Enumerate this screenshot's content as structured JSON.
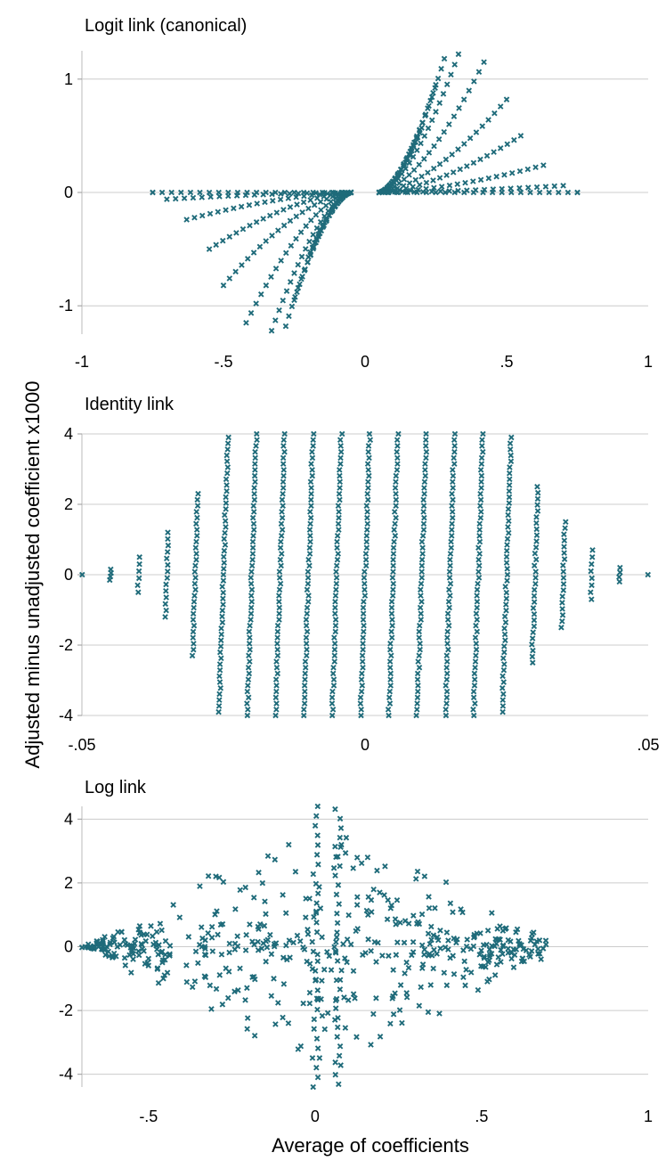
{
  "chart_data": {
    "type": "scatter",
    "xlabel": "Average of coefficients",
    "ylabel": "Adjusted minus unadjusted coefficient x1000",
    "marker_color": "#1f6b7a",
    "marker": "x",
    "grid": "horizontal",
    "panels": [
      {
        "id": "logit",
        "title": "Logit link (canonical)",
        "xlim": [
          -1,
          1
        ],
        "ylim": [
          -1.25,
          1.25
        ],
        "xticks": [
          -1,
          -0.5,
          0,
          0.5,
          1
        ],
        "xtick_labels": [
          "-1",
          "-.5",
          "0",
          ".5",
          "1"
        ],
        "yticks": [
          -1,
          0,
          1
        ],
        "ytick_labels": [
          "-1",
          "0",
          "1"
        ],
        "rays": [
          {
            "r0": 0.05,
            "r1": 0.2,
            "y1": 0.57
          },
          {
            "r0": 0.05,
            "r1": 0.25,
            "y1": 0.95
          },
          {
            "r0": 0.05,
            "r1": 0.28,
            "y1": 1.18
          },
          {
            "r0": 0.05,
            "r1": 0.33,
            "y1": 1.22
          },
          {
            "r0": 0.05,
            "r1": 0.42,
            "y1": 1.15
          },
          {
            "r0": 0.05,
            "r1": 0.5,
            "y1": 0.82
          },
          {
            "r0": 0.05,
            "r1": 0.55,
            "y1": 0.5
          },
          {
            "r0": 0.05,
            "r1": 0.63,
            "y1": 0.24
          },
          {
            "r0": 0.05,
            "r1": 0.7,
            "y1": 0.06
          },
          {
            "r0": 0.05,
            "r1": 0.75,
            "y1": 0.0
          }
        ],
        "points": [
          [
            0.05,
            0.0
          ],
          [
            0.07,
            0.0
          ],
          [
            -0.05,
            0.0
          ],
          [
            -0.07,
            0.0
          ],
          [
            0.75,
            0.0
          ],
          [
            -0.75,
            0.0
          ]
        ]
      },
      {
        "id": "identity",
        "title": "Identity link",
        "xlim": [
          -0.05,
          0.05
        ],
        "ylim": [
          -4,
          4
        ],
        "xticks": [
          -0.05,
          0,
          0.05
        ],
        "xtick_labels": [
          "-.05",
          "0",
          ".05"
        ],
        "yticks": [
          -4,
          -2,
          0,
          2,
          4
        ],
        "ytick_labels": [
          "-4",
          "-2",
          "0",
          "2",
          "4"
        ],
        "columns": [
          {
            "x": -0.05,
            "ymax": 0.0
          },
          {
            "x": -0.045,
            "ymax": 0.15
          },
          {
            "x": -0.04,
            "ymax": 0.5
          },
          {
            "x": -0.035,
            "ymax": 1.2
          },
          {
            "x": -0.03,
            "ymax": 2.3
          },
          {
            "x": -0.025,
            "ymax": 3.9
          },
          {
            "x": -0.02,
            "ymax": 4.0
          },
          {
            "x": -0.015,
            "ymax": 4.0
          },
          {
            "x": -0.01,
            "ymax": 4.0
          },
          {
            "x": -0.005,
            "ymax": 4.0
          },
          {
            "x": 0.0,
            "ymax": 4.0
          },
          {
            "x": 0.005,
            "ymax": 4.0
          },
          {
            "x": 0.01,
            "ymax": 4.0
          },
          {
            "x": 0.015,
            "ymax": 4.0
          },
          {
            "x": 0.02,
            "ymax": 4.0
          },
          {
            "x": 0.025,
            "ymax": 3.9
          },
          {
            "x": 0.03,
            "ymax": 2.5
          },
          {
            "x": 0.035,
            "ymax": 1.5
          },
          {
            "x": 0.04,
            "ymax": 0.7
          },
          {
            "x": 0.045,
            "ymax": 0.2
          },
          {
            "x": 0.05,
            "ymax": 0.0
          }
        ]
      },
      {
        "id": "log",
        "title": "Log link",
        "xlim": [
          -0.7,
          1
        ],
        "ylim": [
          -4.4,
          4.4
        ],
        "xticks": [
          -0.5,
          0,
          0.5,
          1
        ],
        "xtick_labels": [
          "-.5",
          "0",
          ".5",
          "1"
        ],
        "yticks": [
          -4,
          -2,
          0,
          2,
          4
        ],
        "ytick_labels": [
          "-4",
          "-2",
          "0",
          "2",
          "4"
        ],
        "extent_left": -0.7,
        "extent_right": 0.7,
        "ymax": 4.4
      }
    ]
  }
}
